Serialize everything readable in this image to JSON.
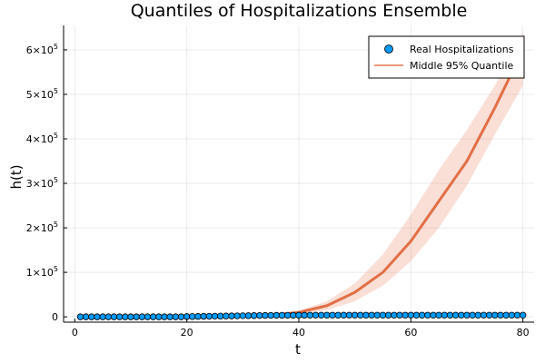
{
  "chart_data": {
    "type": "line",
    "title": "Quantiles of Hospitalizations Ensemble",
    "xlabel": "t",
    "ylabel": "h(t)",
    "xlim": [
      -2,
      82
    ],
    "ylim": [
      -12000,
      655000
    ],
    "grid": true,
    "legend_position": "top-right",
    "x_ticks": [
      {
        "value": 0,
        "label": "0"
      },
      {
        "value": 20,
        "label": "20"
      },
      {
        "value": 40,
        "label": "40"
      },
      {
        "value": 60,
        "label": "60"
      },
      {
        "value": 80,
        "label": "80"
      }
    ],
    "y_ticks": [
      {
        "value": 0,
        "mantissa": "0",
        "exp": ""
      },
      {
        "value": 100000,
        "mantissa": "1×10",
        "exp": "5"
      },
      {
        "value": 200000,
        "mantissa": "2×10",
        "exp": "5"
      },
      {
        "value": 300000,
        "mantissa": "3×10",
        "exp": "5"
      },
      {
        "value": 400000,
        "mantissa": "4×10",
        "exp": "5"
      },
      {
        "value": 500000,
        "mantissa": "5×10",
        "exp": "5"
      },
      {
        "value": 600000,
        "mantissa": "6×10",
        "exp": "5"
      }
    ],
    "series": [
      {
        "name": "Real Hospitalizations",
        "kind": "scatter",
        "color": "#009AFA",
        "x": [
          1,
          2,
          3,
          4,
          5,
          6,
          7,
          8,
          9,
          10,
          11,
          12,
          13,
          14,
          15,
          16,
          17,
          18,
          19,
          20,
          21,
          22,
          23,
          24,
          25,
          26,
          27,
          28,
          29,
          30,
          31,
          32,
          33,
          34,
          35,
          36,
          37,
          38,
          39,
          40,
          41,
          42,
          43,
          44,
          45,
          46,
          47,
          48,
          49,
          50,
          51,
          52,
          53,
          54,
          55,
          56,
          57,
          58,
          59,
          60,
          61,
          62,
          63,
          64,
          65,
          66,
          67,
          68,
          69,
          70,
          71,
          72,
          73,
          74,
          75,
          76,
          77,
          78,
          79,
          80
        ],
        "y": [
          0,
          0,
          0,
          0,
          0,
          0,
          0,
          0,
          0,
          0,
          0,
          0,
          0,
          0,
          0,
          0,
          0,
          0,
          0,
          500,
          600,
          800,
          1000,
          1200,
          1400,
          1600,
          1800,
          2000,
          2200,
          2400,
          2600,
          2800,
          3000,
          3100,
          3200,
          3300,
          3400,
          3500,
          3500,
          3600,
          3600,
          3700,
          3700,
          3700,
          3700,
          3700,
          3700,
          3700,
          3700,
          3700,
          3700,
          3700,
          3700,
          3700,
          3700,
          3700,
          3700,
          3700,
          3700,
          3700,
          3700,
          3700,
          3700,
          3700,
          3700,
          3700,
          3700,
          3700,
          3700,
          3700,
          3700,
          3700,
          3700,
          3700,
          3700,
          3700,
          3700,
          3700,
          3700,
          3700
        ]
      },
      {
        "name": "Middle 95% Quantile",
        "kind": "line-band",
        "color": "#E26F46",
        "x": [
          1,
          5,
          10,
          15,
          20,
          25,
          30,
          33,
          36,
          40,
          45,
          50,
          55,
          60,
          65,
          70,
          75,
          80
        ],
        "y": [
          0,
          0,
          0,
          0,
          500,
          1000,
          2000,
          3000,
          5000,
          10000,
          25000,
          55000,
          100000,
          170000,
          260000,
          350000,
          470000,
          600000
        ],
        "lower": [
          0,
          0,
          0,
          0,
          300,
          600,
          1200,
          2000,
          3000,
          6000,
          15000,
          35000,
          70000,
          125000,
          200000,
          295000,
          410000,
          520000
        ],
        "upper": [
          0,
          0,
          0,
          0,
          800,
          1600,
          3000,
          4500,
          7500,
          14000,
          35000,
          75000,
          140000,
          230000,
          330000,
          420000,
          520000,
          640000
        ]
      }
    ]
  }
}
